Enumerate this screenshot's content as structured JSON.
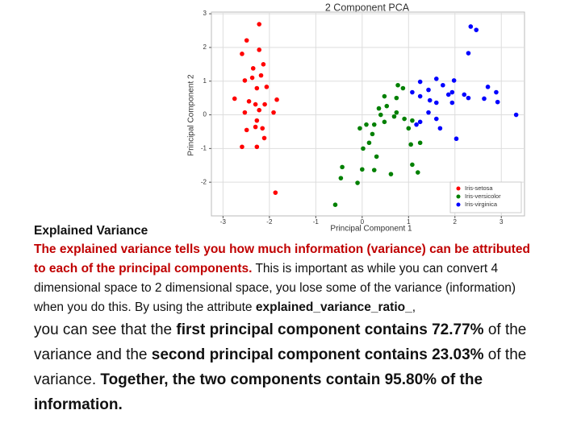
{
  "chart_data": {
    "type": "scatter",
    "title": "2 Component PCA",
    "x_label": "Principal Component 1",
    "y_label": "Principal Component 2",
    "xlim": [
      -3.25,
      3.5
    ],
    "ylim": [
      -3.0,
      3.05
    ],
    "xticks": [
      -3,
      -2,
      -1,
      0,
      1,
      2,
      3
    ],
    "yticks": [
      -2,
      -1,
      0,
      1,
      2,
      3
    ],
    "grid": true,
    "legend": "lower right",
    "series": [
      {
        "name": "Iris-setosa",
        "color": "#ff0000",
        "x": [
          -2.49,
          -2.22,
          -2.59,
          -2.22,
          -2.13,
          -2.35,
          -2.18,
          -2.37,
          -2.27,
          -2.06,
          -1.84,
          -2.44,
          -2.75,
          -2.3,
          -2.1,
          -2.22,
          -2.53,
          -1.91,
          -2.27,
          -2.3,
          -2.15,
          -2.49,
          -2.11,
          -2.27,
          -2.59,
          -1.87,
          -2.53
        ],
        "values": [
          2.21,
          2.69,
          1.81,
          1.93,
          1.5,
          1.38,
          1.17,
          1.1,
          0.79,
          0.83,
          0.45,
          0.4,
          0.48,
          0.31,
          0.31,
          0.14,
          0.07,
          0.07,
          -0.17,
          -0.36,
          -0.4,
          -0.45,
          -0.69,
          -0.95,
          -0.95,
          -2.31,
          1.02
        ]
      },
      {
        "name": "Iris-versicolor",
        "color": "#008000",
        "x": [
          -0.58,
          -0.46,
          -0.43,
          -0.1,
          0.0,
          0.26,
          0.62,
          0.31,
          0.02,
          0.15,
          0.22,
          -0.05,
          0.09,
          0.26,
          0.48,
          0.69,
          0.4,
          0.36,
          0.74,
          0.91,
          1.0,
          1.08,
          1.05,
          1.2,
          1.08,
          1.25,
          0.88,
          0.74,
          0.48,
          0.77,
          0.53
        ],
        "values": [
          -2.67,
          -1.88,
          -1.55,
          -2.02,
          -1.62,
          -1.64,
          -1.76,
          -1.24,
          -1.0,
          -0.83,
          -0.57,
          -0.4,
          -0.29,
          -0.29,
          -0.21,
          -0.05,
          0.0,
          0.19,
          0.07,
          -0.12,
          -0.4,
          -0.17,
          -0.88,
          -1.71,
          -1.48,
          -0.83,
          0.79,
          0.5,
          0.55,
          0.88,
          0.26
        ]
      },
      {
        "name": "Iris-virginica",
        "color": "#0000ff",
        "x": [
          2.34,
          2.46,
          2.29,
          1.98,
          1.6,
          1.25,
          1.74,
          1.43,
          1.08,
          1.25,
          1.6,
          1.94,
          1.86,
          2.2,
          2.29,
          2.71,
          2.89,
          2.63,
          2.92,
          3.32,
          1.43,
          1.6,
          1.25,
          1.17,
          2.03,
          1.68,
          1.94,
          1.46
        ],
        "values": [
          2.62,
          2.52,
          1.83,
          1.02,
          1.07,
          0.98,
          0.88,
          0.74,
          0.67,
          0.55,
          0.36,
          0.36,
          0.6,
          0.6,
          0.5,
          0.83,
          0.67,
          0.48,
          0.38,
          0.0,
          0.07,
          -0.12,
          -0.21,
          -0.29,
          -0.71,
          -0.4,
          0.67,
          0.43
        ]
      }
    ]
  },
  "document": {
    "heading": "Explained Variance",
    "paragraph1": [
      "The explained variance tells you how much information (variance) can be attributed to each of the principal components.",
      " This is important as while you can convert 4 dimensional space to 2 dimensional space, you lose some of the variance (information) when you do this. By using the attribute ",
      "explained_variance_ratio_",
      ","
    ],
    "paragraph2": [
      "you can see that the ",
      "first principal component contains 72.77%",
      " of the variance and the ",
      "second principal component contains 23.03%",
      " of the variance. ",
      "Together, the two components contain 95.80% of the information."
    ]
  }
}
